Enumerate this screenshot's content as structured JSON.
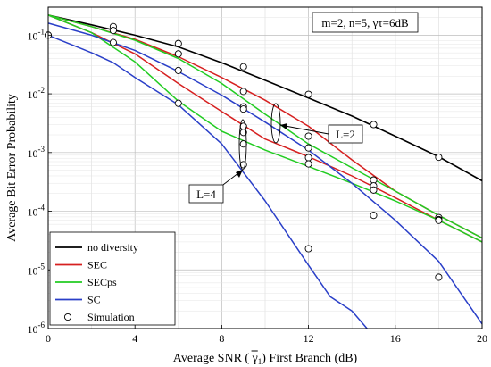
{
  "chart_data": {
    "type": "line",
    "xlabel": "Average SNR ( γ1) First Branch (dB)",
    "ylabel": "Average Bit Error Probability",
    "xlim": [
      0,
      20
    ],
    "ylim": [
      1e-06,
      0.3
    ],
    "yscale": "log",
    "grid": true,
    "xticks": [
      0,
      4,
      8,
      12,
      16,
      20
    ],
    "xtick_labels": [
      "0",
      "4",
      "8",
      "12",
      "16",
      "20"
    ],
    "yticks": [
      1e-06,
      1e-05,
      0.0001,
      0.001,
      0.01,
      0.1
    ],
    "params_box": "m=2, n=5, γτ=6dB",
    "annotations": [
      {
        "text": "L=2",
        "x": 11.8,
        "y": 0.0022
      },
      {
        "text": "L=4",
        "x": 7.3,
        "y": 0.00012
      }
    ],
    "legend": {
      "position": "bottom-left",
      "entries": [
        "no diversity",
        "SEC",
        "SECps",
        "SC",
        "Simulation"
      ]
    },
    "series": [
      {
        "name": "no diversity",
        "color": "#000000",
        "x": [
          0,
          2,
          4,
          6,
          8,
          10,
          12,
          14,
          16,
          18,
          20
        ],
        "y": [
          0.22,
          0.15,
          0.1,
          0.063,
          0.034,
          0.017,
          0.0085,
          0.0042,
          0.0019,
          0.00085,
          0.00033
        ]
      },
      {
        "name": "SEC",
        "group": "L=2",
        "color": "#d62020",
        "x": [
          0,
          2,
          4,
          6,
          8,
          10,
          12,
          14,
          16,
          18,
          20
        ],
        "y": [
          0.22,
          0.14,
          0.085,
          0.043,
          0.019,
          0.0078,
          0.0028,
          0.00075,
          0.00022,
          8.5e-05,
          3.5e-05
        ]
      },
      {
        "name": "SEC",
        "group": "L=4",
        "color": "#d62020",
        "x": [
          0,
          2,
          4,
          6,
          8,
          10,
          12,
          14,
          16,
          18,
          20
        ],
        "y": [
          0.22,
          0.11,
          0.048,
          0.015,
          0.005,
          0.0017,
          0.00085,
          0.0004,
          0.00017,
          7e-05,
          3e-05
        ]
      },
      {
        "name": "SECps",
        "group": "L=2",
        "color": "#22cc22",
        "x": [
          0,
          2,
          4,
          6,
          8,
          10,
          12,
          14,
          16,
          18,
          20
        ],
        "y": [
          0.22,
          0.14,
          0.082,
          0.04,
          0.015,
          0.0045,
          0.0014,
          0.00055,
          0.00022,
          8.5e-05,
          3.5e-05
        ]
      },
      {
        "name": "SECps",
        "group": "L=4",
        "color": "#22cc22",
        "x": [
          0,
          2,
          4,
          6,
          8,
          10,
          12,
          14,
          16,
          18,
          20
        ],
        "y": [
          0.22,
          0.11,
          0.035,
          0.0075,
          0.0023,
          0.0011,
          0.00058,
          0.0003,
          0.00015,
          7e-05,
          3e-05
        ]
      },
      {
        "name": "SC",
        "group": "L=2",
        "color": "#2a3fc8",
        "x": [
          0,
          2,
          4,
          6,
          8,
          10,
          12,
          14,
          16,
          18,
          20
        ],
        "y": [
          0.16,
          0.1,
          0.055,
          0.024,
          0.0095,
          0.0033,
          0.0011,
          0.0003,
          7e-05,
          1.4e-05,
          1.2e-06
        ]
      },
      {
        "name": "SC",
        "group": "L=4",
        "color": "#2a3fc8",
        "x": [
          0,
          2,
          3,
          4,
          6,
          8,
          10,
          12,
          13,
          14,
          14.7
        ],
        "y": [
          0.1,
          0.05,
          0.034,
          0.019,
          0.0065,
          0.0014,
          0.00015,
          1.2e-05,
          3.5e-06,
          2e-06,
          1e-06
        ]
      },
      {
        "name": "Simulation",
        "marker": "circle",
        "x": [
          0,
          3,
          6,
          9,
          12,
          15,
          18,
          3,
          6,
          9,
          12,
          15,
          18,
          3,
          6,
          9,
          12,
          15,
          18,
          6,
          9,
          9,
          9,
          9,
          12,
          12,
          15,
          18,
          9,
          12,
          15,
          18
        ],
        "y": [
          0.1,
          0.14,
          0.072,
          0.029,
          0.0098,
          0.003,
          0.00083,
          0.12,
          0.048,
          0.011,
          0.0019,
          0.00034,
          7.8e-05,
          0.075,
          0.025,
          0.006,
          0.0012,
          0.00027,
          7.2e-05,
          0.0069,
          0.0028,
          0.0022,
          0.0014,
          0.00062,
          0.00082,
          0.00064,
          8.5e-05,
          7.5e-06,
          0.0055,
          2.3e-05,
          0.00023,
          7e-05
        ]
      }
    ]
  }
}
